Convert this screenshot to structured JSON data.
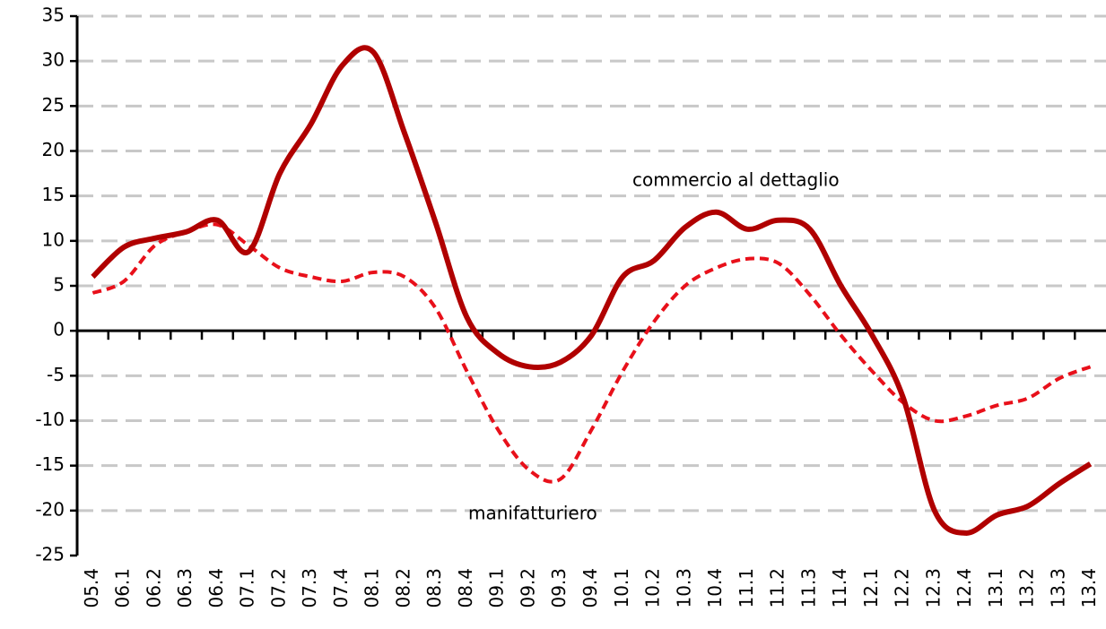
{
  "chart_data": {
    "type": "line",
    "categories": [
      "05.4",
      "06.1",
      "06.2",
      "06.3",
      "06.4",
      "07.1",
      "07.2",
      "07.3",
      "07.4",
      "08.1",
      "08.2",
      "08.3",
      "08.4",
      "09.1",
      "09.2",
      "09.3",
      "09.4",
      "10.1",
      "10.2",
      "10.3",
      "10.4",
      "11.1",
      "11.2",
      "11.3",
      "11.4",
      "12.1",
      "12.2",
      "12.3",
      "12.4",
      "13.1",
      "13.2",
      "13.3",
      "13.4"
    ],
    "series": [
      {
        "name": "commercio al dettaglio",
        "color": "#b00000",
        "dash": false,
        "values": [
          6,
          9.3,
          10.3,
          11,
          12.3,
          8.8,
          17.5,
          23,
          29.5,
          31,
          22,
          12,
          1.5,
          -2.5,
          -4,
          -3.5,
          -0.5,
          6,
          7.8,
          11.5,
          13.2,
          11.3,
          12.3,
          11.3,
          5,
          -0.5,
          -7.5,
          -20,
          -22.5,
          -20.5,
          -19.5,
          -17,
          -14.8
        ]
      },
      {
        "name": "manifatturiero",
        "color": "#e8101a",
        "dash": true,
        "values": [
          4.2,
          5.5,
          9.5,
          11,
          11.8,
          9.5,
          7,
          6,
          5.5,
          6.5,
          6,
          2.5,
          -4.5,
          -11,
          -15.5,
          -16.5,
          -11,
          -4.5,
          1,
          5,
          7,
          8,
          7.5,
          4,
          -0.5,
          -4.5,
          -8,
          -10,
          -9.5,
          -8.3,
          -7.5,
          -5.3,
          -4
        ]
      }
    ],
    "ylim": [
      -25,
      35
    ],
    "yticks": [
      -25,
      -20,
      -15,
      -10,
      -5,
      0,
      5,
      10,
      15,
      20,
      25,
      30,
      35
    ],
    "grid": true
  }
}
